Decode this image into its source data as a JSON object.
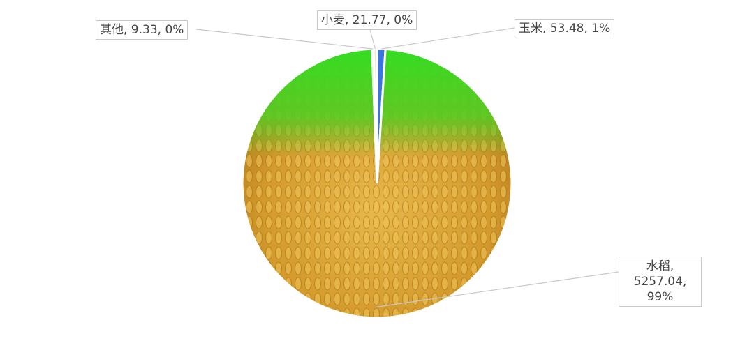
{
  "chart_data": {
    "type": "pie",
    "slices": [
      {
        "name": "玉米",
        "value": 53.48,
        "percent": "1%",
        "color": "#3a75e0"
      },
      {
        "name": "水稻",
        "value": 5257.04,
        "percent": "99%",
        "color": "#d9a63a",
        "fill": "rice-photo"
      },
      {
        "name": "其他",
        "value": 9.33,
        "percent": "0%",
        "color": "#e8a030"
      },
      {
        "name": "小麦",
        "value": 21.77,
        "percent": "0%",
        "color": "#f3e6c8"
      }
    ],
    "labels": {
      "corn": "玉米, 53.48, 1%",
      "rice_1": "水稻,",
      "rice_2": "5257.04,",
      "rice_3": "99%",
      "other": "其他, 9.33, 0%",
      "wheat": "小麦, 21.77, 0%"
    },
    "legend": "none"
  }
}
